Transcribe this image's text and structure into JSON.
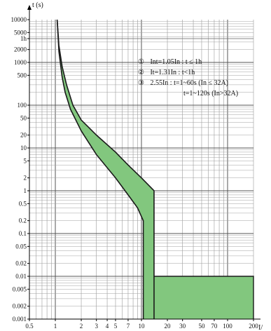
{
  "chart_data": {
    "type": "area",
    "xlabel": "I/",
    "ylabel": "t (s)",
    "x_scale": "log",
    "y_scale": "log",
    "xlim": [
      0.5,
      200
    ],
    "ylim": [
      0.001,
      10000
    ],
    "x_ticks": [
      {
        "value": 0.5,
        "label": "0.5"
      },
      {
        "value": 1,
        "label": "1"
      },
      {
        "value": 2,
        "label": "2"
      },
      {
        "value": 3,
        "label": "3"
      },
      {
        "value": 4,
        "label": "4"
      },
      {
        "value": 5,
        "label": "5"
      },
      {
        "value": 7,
        "label": "7"
      },
      {
        "value": 10,
        "label": "10"
      },
      {
        "value": 20,
        "label": "20"
      },
      {
        "value": 30,
        "label": "30"
      },
      {
        "value": 50,
        "label": "50"
      },
      {
        "value": 70,
        "label": "70"
      },
      {
        "value": 100,
        "label": "100"
      },
      {
        "value": 200,
        "label": "200"
      }
    ],
    "y_ticks": [
      {
        "value": 10000,
        "label": "10000"
      },
      {
        "value": 5000,
        "label": "5000"
      },
      {
        "value": 3600,
        "label": "1h"
      },
      {
        "value": 2000,
        "label": "2000"
      },
      {
        "value": 1000,
        "label": "1000"
      },
      {
        "value": 500,
        "label": "500"
      },
      {
        "value": 100,
        "label": "100"
      },
      {
        "value": 50,
        "label": "50"
      },
      {
        "value": 20,
        "label": "20"
      },
      {
        "value": 10,
        "label": "10"
      },
      {
        "value": 5,
        "label": "5"
      },
      {
        "value": 2,
        "label": "2"
      },
      {
        "value": 1,
        "label": "1"
      },
      {
        "value": 0.5,
        "label": "0.5"
      },
      {
        "value": 0.2,
        "label": "0.2"
      },
      {
        "value": 0.1,
        "label": "0.1"
      },
      {
        "value": 0.05,
        "label": "0.05"
      },
      {
        "value": 0.02,
        "label": "0.02"
      },
      {
        "value": 0.01,
        "label": "0.01"
      },
      {
        "value": 0.005,
        "label": "0.005"
      },
      {
        "value": 0.002,
        "label": "0.002"
      },
      {
        "value": 0.001,
        "label": "0.001"
      }
    ],
    "series": [
      {
        "role": "upper",
        "points": [
          [
            1.05,
            10000
          ],
          [
            1.1,
            2500
          ],
          [
            1.2,
            800
          ],
          [
            1.35,
            300
          ],
          [
            1.6,
            100
          ],
          [
            2,
            45
          ],
          [
            3,
            20
          ],
          [
            5,
            8
          ],
          [
            7,
            4
          ],
          [
            10,
            2
          ],
          [
            14,
            1
          ],
          [
            14,
            0.001
          ]
        ]
      },
      {
        "role": "lower",
        "points": [
          [
            1.05,
            10000
          ],
          [
            1.1,
            1800
          ],
          [
            1.2,
            450
          ],
          [
            1.3,
            200
          ],
          [
            1.5,
            80
          ],
          [
            2,
            25
          ],
          [
            3,
            7
          ],
          [
            5,
            2
          ],
          [
            7,
            0.8
          ],
          [
            9,
            0.4
          ],
          [
            10.5,
            0.2
          ],
          [
            10.5,
            0.001
          ]
        ]
      },
      {
        "role": "instantaneous-band",
        "points": [
          [
            14,
            0.01
          ],
          [
            200,
            0.01
          ]
        ]
      }
    ],
    "fill_color": "#82c77e",
    "line_color": "#1a1a1a",
    "grid": true,
    "annotations": [
      {
        "marker": "①",
        "text": "Int=1.05In : t ≤ 1h"
      },
      {
        "marker": "②",
        "text": "It=1.31In : t<1h"
      },
      {
        "marker": "③",
        "text": "2.55In : t=1~60s (In ≤ 32A)"
      },
      {
        "marker": "",
        "text": "t=1~120s (In>32A)"
      }
    ]
  }
}
